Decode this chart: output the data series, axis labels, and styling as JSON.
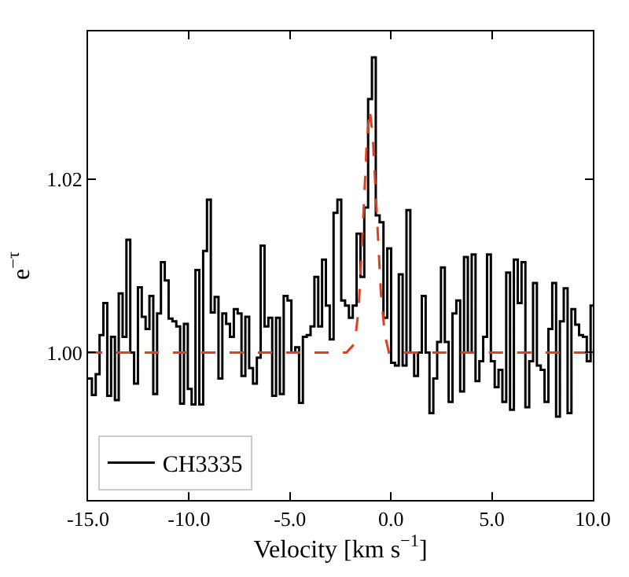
{
  "chart_data": {
    "type": "step",
    "xlabel": "Velocity [km s$^{−1}$]",
    "ylabel": "e$^{−τ}$",
    "xlim": [
      -15,
      10
    ],
    "ylim": [
      0.983,
      1.037
    ],
    "xticks": [
      {
        "value": -15,
        "label": "-15.0"
      },
      {
        "value": -10,
        "label": "-10.0"
      },
      {
        "value": -5,
        "label": "-5.0"
      },
      {
        "value": 0,
        "label": "0.0"
      },
      {
        "value": 5,
        "label": "5.0"
      },
      {
        "value": 10,
        "label": "10.0"
      }
    ],
    "yticks": [
      {
        "value": 1.0,
        "label": "1.00"
      },
      {
        "value": 1.02,
        "label": "1.02"
      }
    ],
    "legend": "bottom left",
    "marker": "none",
    "series": [
      {
        "name": "CH3335",
        "color": "#000000",
        "line_style": "solid",
        "x": [
          -15.0,
          -14.81,
          -14.62,
          -14.43,
          -14.24,
          -14.05,
          -13.86,
          -13.67,
          -13.48,
          -13.29,
          -13.1,
          -12.91,
          -12.72,
          -12.53,
          -12.34,
          -12.15,
          -11.96,
          -11.77,
          -11.58,
          -11.39,
          -11.2,
          -11.01,
          -10.82,
          -10.63,
          -10.44,
          -10.25,
          -10.06,
          -9.87,
          -9.68,
          -9.49,
          -9.3,
          -9.11,
          -8.92,
          -8.73,
          -8.54,
          -8.35,
          -8.16,
          -7.97,
          -7.78,
          -7.59,
          -7.4,
          -7.21,
          -7.02,
          -6.83,
          -6.64,
          -6.45,
          -6.26,
          -6.07,
          -5.88,
          -5.69,
          -5.5,
          -5.31,
          -5.12,
          -4.93,
          -4.74,
          -4.55,
          -4.36,
          -4.17,
          -3.98,
          -3.79,
          -3.6,
          -3.41,
          -3.22,
          -3.03,
          -2.84,
          -2.65,
          -2.46,
          -2.27,
          -2.08,
          -1.89,
          -1.7,
          -1.51,
          -1.32,
          -1.13,
          -0.94,
          -0.75,
          -0.56,
          -0.37,
          -0.18,
          0.01,
          0.2,
          0.39,
          0.58,
          0.77,
          0.96,
          1.15,
          1.34,
          1.53,
          1.72,
          1.91,
          2.1,
          2.29,
          2.48,
          2.67,
          2.86,
          3.05,
          3.24,
          3.43,
          3.62,
          3.81,
          4.0,
          4.19,
          4.38,
          4.57,
          4.76,
          4.95,
          5.14,
          5.33,
          5.52,
          5.71,
          5.9,
          6.09,
          6.28,
          6.47,
          6.66,
          6.85,
          7.04,
          7.23,
          7.42,
          7.61,
          7.8,
          7.99,
          8.18,
          8.37,
          8.56,
          8.75,
          8.94,
          9.13,
          9.32,
          9.51,
          9.7,
          9.89,
          10.0
        ],
        "values": [
          0.997,
          0.9951,
          0.9975,
          1.002,
          1.0057,
          0.995,
          1.0018,
          0.9945,
          1.0068,
          1.0018,
          1.013,
          1.0,
          0.9964,
          1.0075,
          1.0041,
          1.0027,
          1.0065,
          0.9952,
          1.0045,
          1.0104,
          1.0083,
          1.0039,
          1.0036,
          1.003,
          0.9941,
          1.0033,
          0.9958,
          0.994,
          1.0095,
          0.994,
          1.0117,
          1.0176,
          1.0046,
          1.0064,
          0.997,
          1.0045,
          1.0033,
          1.0018,
          1.005,
          1.0045,
          0.9973,
          1.0041,
          0.9982,
          0.9964,
          0.9994,
          1.0123,
          1.003,
          1.004,
          0.995,
          1.004,
          0.9952,
          1.0065,
          1.006,
          1.0,
          1.0006,
          0.9942,
          1.0018,
          1.002,
          1.003,
          1.0087,
          1.003,
          1.0107,
          1.0054,
          1.0015,
          1.0161,
          1.0176,
          1.006,
          1.0054,
          1.004,
          1.0054,
          1.0137,
          1.0087,
          1.0167,
          1.0292,
          1.034,
          1.0158,
          1.015,
          1.004,
          1.012,
          0.9988,
          0.9985,
          1.009,
          0.9985,
          1.0164,
          1.0,
          0.9973,
          1.0,
          1.0065,
          1.0,
          0.993,
          0.997,
          1.0012,
          1.0098,
          1.0012,
          0.9943,
          1.0045,
          1.006,
          0.9955,
          1.011,
          1.0,
          1.0113,
          0.9967,
          0.999,
          1.0018,
          1.0113,
          0.999,
          0.996,
          0.998,
          0.9943,
          1.0092,
          0.9934,
          1.0107,
          1.0057,
          1.0104,
          0.9937,
          0.999,
          1.008,
          0.9985,
          0.998,
          0.9943,
          1.0027,
          1.008,
          0.9926,
          1.0036,
          1.0074,
          0.993,
          1.005,
          1.0032,
          1.002,
          1.0018,
          0.999,
          1.0054,
          1.0054
        ]
      },
      {
        "color": "#e0401e",
        "type": "line",
        "line_style": "dashed",
        "x": [
          -15,
          -2.2,
          -1.8,
          -1.6,
          -1.4,
          -1.2,
          -1.05,
          -0.9,
          -0.7,
          -0.5,
          -0.3,
          -0.1,
          10
        ],
        "values": [
          1.0,
          1.0,
          1.001,
          1.005,
          1.014,
          1.024,
          1.028,
          1.025,
          1.016,
          1.007,
          1.002,
          1.0,
          1.0
        ]
      }
    ]
  }
}
